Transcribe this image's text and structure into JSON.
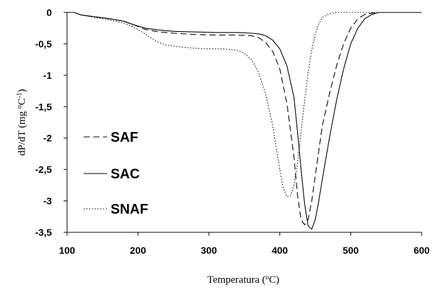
{
  "chart_data": {
    "type": "line",
    "title": "",
    "xlabel": "Temperatura (",
    "xlabel_sup": "o",
    "xlabel_end": "C)",
    "ylabel_parts": [
      "dP/dT (mg ",
      "o",
      "C",
      "-1",
      ")"
    ],
    "xlim": [
      100,
      600
    ],
    "ylim": [
      -3.5,
      0
    ],
    "x_ticks": [
      100,
      200,
      300,
      400,
      500,
      600
    ],
    "x_tick_labels": [
      "100",
      "200",
      "300",
      "400",
      "500",
      "600"
    ],
    "y_ticks": [
      0,
      -0.5,
      -1,
      -1.5,
      -2,
      -2.5,
      -3,
      -3.5
    ],
    "y_tick_labels": [
      "0",
      "-0,5",
      "-1",
      "-1,5",
      "-2",
      "-2,5",
      "-3",
      "-3,5"
    ],
    "grid": false,
    "legend_position": "left",
    "series": [
      {
        "name": "SAF",
        "dash": "dashed",
        "x": [
          100,
          110,
          120,
          140,
          160,
          180,
          195,
          210,
          230,
          250,
          280,
          310,
          340,
          360,
          370,
          380,
          390,
          400,
          410,
          420,
          425,
          430,
          435,
          440,
          445,
          450,
          455,
          460,
          470,
          480,
          490,
          500,
          510,
          520,
          530,
          540,
          550,
          560,
          600
        ],
        "y": [
          0,
          0,
          -0.04,
          -0.07,
          -0.1,
          -0.14,
          -0.2,
          -0.27,
          -0.31,
          -0.33,
          -0.35,
          -0.36,
          -0.36,
          -0.37,
          -0.4,
          -0.48,
          -0.62,
          -0.9,
          -1.45,
          -2.3,
          -2.9,
          -3.3,
          -3.38,
          -3.3,
          -3.0,
          -2.6,
          -2.2,
          -1.8,
          -1.3,
          -0.85,
          -0.5,
          -0.25,
          -0.1,
          -0.03,
          -0.01,
          0,
          0,
          0,
          0
        ]
      },
      {
        "name": "SAC",
        "dash": "solid",
        "x": [
          100,
          110,
          120,
          140,
          160,
          180,
          195,
          210,
          230,
          250,
          280,
          310,
          340,
          360,
          370,
          380,
          390,
          400,
          410,
          420,
          425,
          430,
          435,
          440,
          445,
          450,
          455,
          460,
          470,
          480,
          490,
          500,
          510,
          520,
          530,
          540,
          550,
          560,
          600
        ],
        "y": [
          0,
          0,
          -0.04,
          -0.07,
          -0.1,
          -0.14,
          -0.2,
          -0.25,
          -0.28,
          -0.3,
          -0.31,
          -0.32,
          -0.32,
          -0.33,
          -0.34,
          -0.37,
          -0.44,
          -0.58,
          -0.85,
          -1.35,
          -1.9,
          -2.5,
          -3.05,
          -3.4,
          -3.45,
          -3.3,
          -3.0,
          -2.65,
          -2.0,
          -1.4,
          -0.9,
          -0.5,
          -0.25,
          -0.1,
          -0.03,
          0,
          0,
          0,
          0
        ]
      },
      {
        "name": "SNAF",
        "dash": "dotted",
        "x": [
          100,
          110,
          120,
          140,
          160,
          180,
          195,
          210,
          220,
          230,
          240,
          260,
          280,
          300,
          320,
          340,
          350,
          360,
          370,
          380,
          390,
          400,
          405,
          410,
          415,
          420,
          425,
          430,
          435,
          440,
          445,
          450,
          455,
          460,
          470,
          480,
          600
        ],
        "y": [
          0,
          0,
          -0.04,
          -0.08,
          -0.12,
          -0.17,
          -0.24,
          -0.34,
          -0.42,
          -0.48,
          -0.52,
          -0.55,
          -0.57,
          -0.58,
          -0.58,
          -0.6,
          -0.65,
          -0.75,
          -0.95,
          -1.3,
          -1.8,
          -2.5,
          -2.8,
          -2.93,
          -2.92,
          -2.75,
          -2.4,
          -1.9,
          -1.4,
          -0.95,
          -0.6,
          -0.35,
          -0.18,
          -0.08,
          -0.02,
          0,
          0
        ]
      }
    ]
  }
}
